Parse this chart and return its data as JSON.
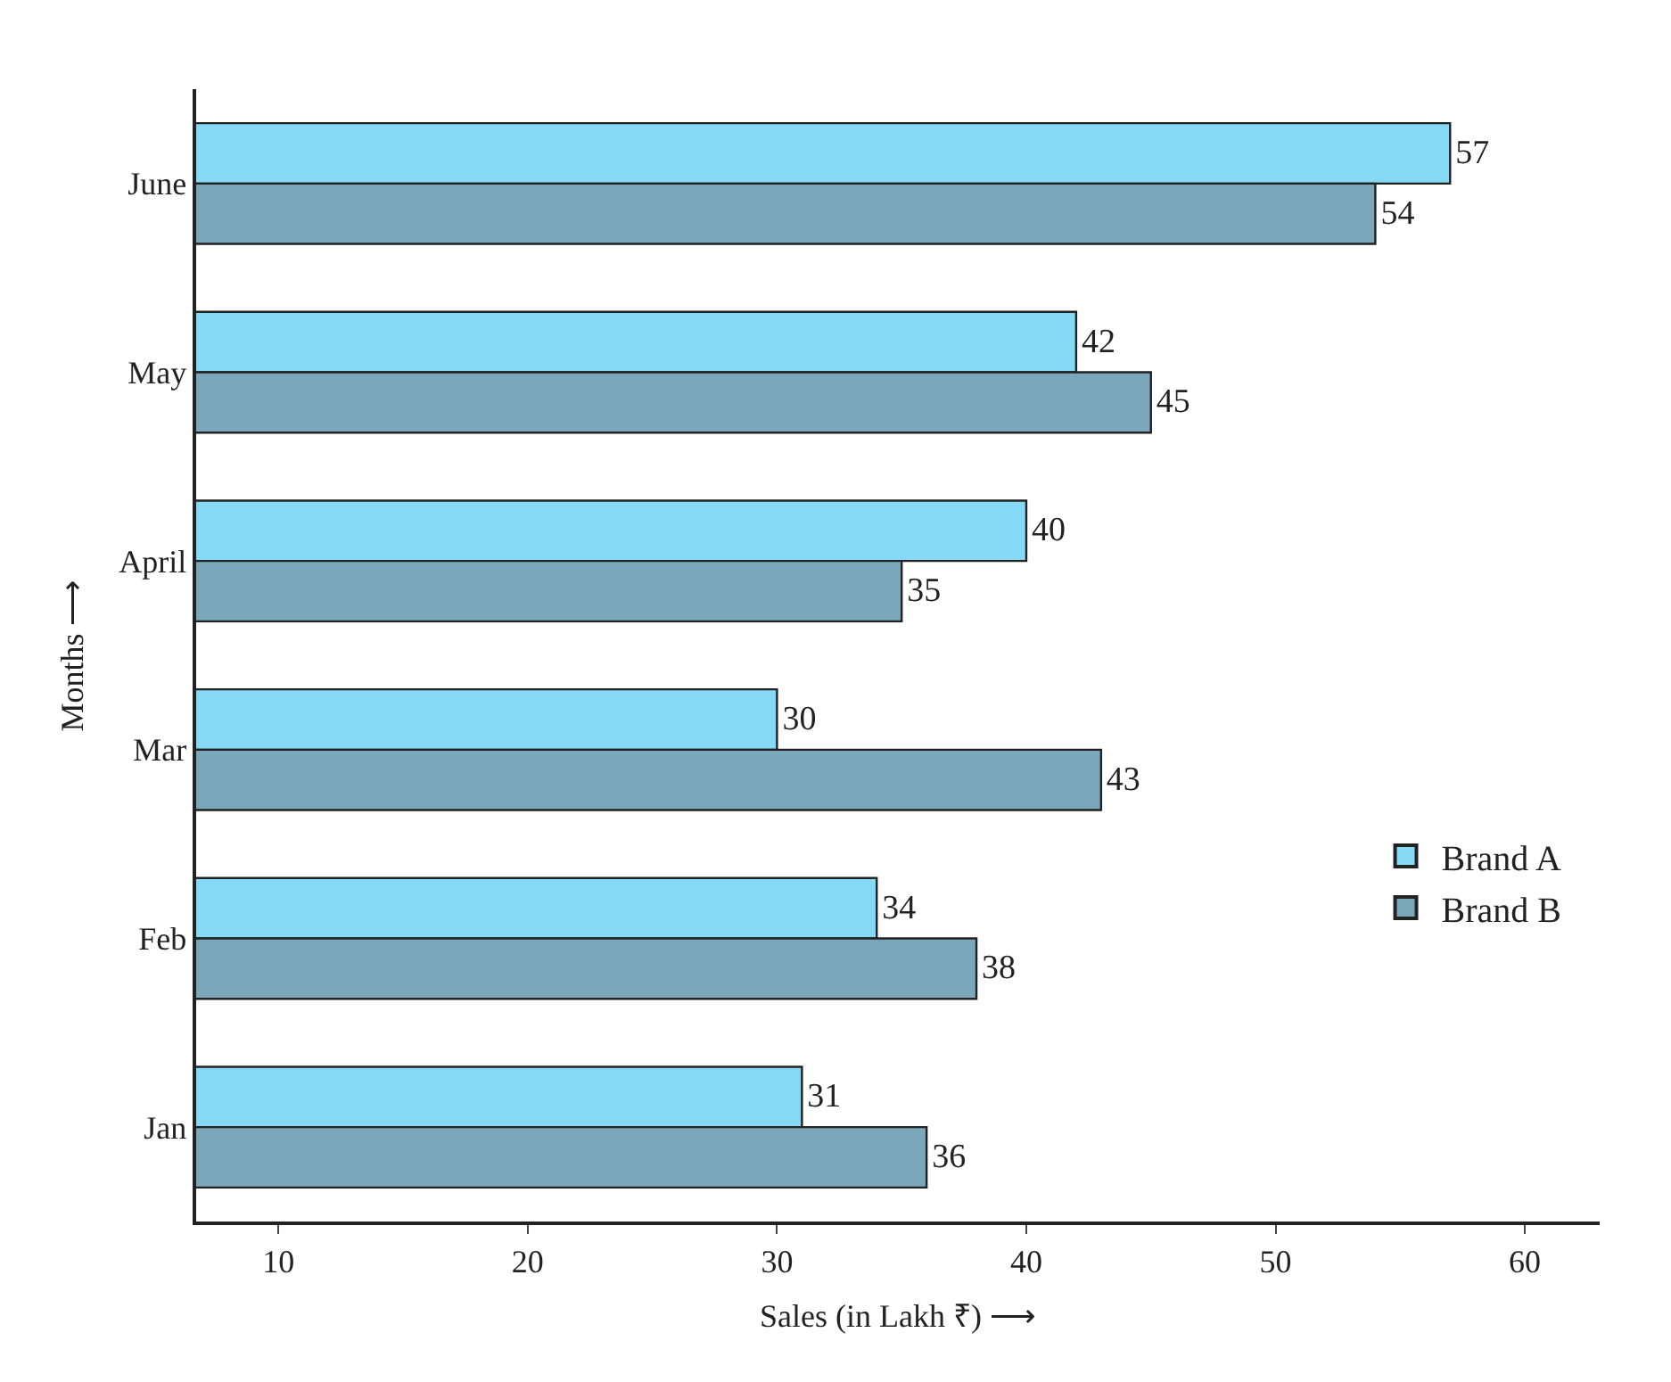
{
  "chart_data": {
    "type": "bar",
    "orientation": "horizontal",
    "xlabel": "Sales (in Lakh ₹) ⟶",
    "ylabel": "Months ⟶",
    "categories": [
      "June",
      "May",
      "April",
      "Mar",
      "Feb",
      "Jan"
    ],
    "series": [
      {
        "name": "Brand A",
        "color": "#86d9f5",
        "values": [
          57,
          42,
          40,
          30,
          34,
          31
        ]
      },
      {
        "name": "Brand B",
        "color": "#7ba7ba",
        "values": [
          54,
          45,
          35,
          43,
          38,
          36
        ]
      }
    ],
    "xlim": [
      6.7,
      63
    ],
    "xticks": [
      10,
      20,
      30,
      40,
      50,
      60
    ],
    "data_labels": true,
    "legend": "right"
  }
}
